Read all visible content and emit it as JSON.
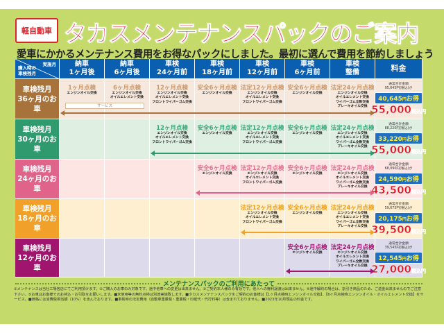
{
  "header": {
    "badge": "軽自動車",
    "title": "タカスメンテナンスパックのご案内",
    "subtitle": "愛車にかかるメンテナンス費用をお得なパックにしました。最初に選んで費用を節約しましょう"
  },
  "table": {
    "corner_top": "実施月",
    "corner_bottom": "購入時の\n車検残月",
    "columns": [
      [
        "納車",
        "1ヶ月後"
      ],
      [
        "納車",
        "6ヶ月後"
      ],
      [
        "車検",
        "24ヶ月前"
      ],
      [
        "車検",
        "18ヶ月前"
      ],
      [
        "車検",
        "12ヶ月前"
      ],
      [
        "車検",
        "6ヶ月前"
      ],
      [
        "車検",
        "整備"
      ]
    ],
    "price_header": "料金",
    "service_label": "サービス",
    "inspections": {
      "m1": {
        "title": "1ヶ月点検",
        "items": [
          "エンジンオイル交換"
        ]
      },
      "m6": {
        "title": "6ヶ月点検",
        "items": [
          "エンジンオイル交換",
          "オイルエレメント交換"
        ]
      },
      "m12": {
        "title": "12ヶ月点検",
        "items": [
          "エンジンオイル交換",
          "オイルエレメント交換",
          "フロントワイパーゴム交換"
        ]
      },
      "s6": {
        "title": "安全6ヶ月点検",
        "items": [
          "エンジンオイル交換"
        ]
      },
      "h12": {
        "title": "法定12ヶ月点検",
        "items": [
          "エンジンオイル交換",
          "オイルエレメント交換",
          "フロントワイパーゴム交換"
        ]
      },
      "h24": {
        "title": "法定24ヶ月点検",
        "items": [
          "エンジンオイル交換",
          "オイルエレメント交換",
          "ワイパーゴム全数交換",
          "ブレーキオイル交換"
        ]
      }
    },
    "price_labels": {
      "normal": "通常合計金額",
      "suffix": "円(税込)が",
      "save_suffix": "円",
      "save_word": "お得",
      "yen": "円",
      "tax": "税込"
    },
    "rows": [
      {
        "label": [
          "車検残月",
          "36ヶ月のお車"
        ],
        "color": "#a8733a",
        "bg": "#f6e8dc",
        "accent": "#c9986c",
        "start": 0,
        "normal": "95,645",
        "save": "40,645",
        "price": "55,000"
      },
      {
        "label": [
          "車検残月",
          "30ヶ月のお車"
        ],
        "color": "#2f9a6e",
        "bg": "#dff0e3",
        "accent": "#3aa57a",
        "start": 2,
        "normal": "88,220",
        "save": "33,220",
        "price": "55,000"
      },
      {
        "label": [
          "車検残月",
          "24ヶ月のお車"
        ],
        "color": "#e0638a",
        "bg": "#fde5e4",
        "accent": "#e2718f",
        "start": 3,
        "normal": "68,090",
        "save": "24,590",
        "price": "43,500"
      },
      {
        "label": [
          "車検残月",
          "18ヶ月のお車"
        ],
        "color": "#f1a12a",
        "bg": "#fdefcf",
        "accent": "#eea01e",
        "start": 4,
        "normal": "59,675",
        "save": "20,175",
        "price": "39,500"
      },
      {
        "label": [
          "車検残月",
          "12ヶ月のお車"
        ],
        "color": "#a0166e",
        "bg": "#dddbeb",
        "accent": "#a0166e",
        "start": 5,
        "normal": "39,545",
        "save": "12,545",
        "price": "27,000"
      }
    ]
  },
  "colors": {
    "page_bg": "#c4db6c",
    "header_blue": "#0b5fb0",
    "title_red": "#e3141f"
  },
  "footer": {
    "heading": "メンテナンスパックのご利用にあたって",
    "text": "①メンテナンスは当社工場各店にてご利用頂けます。②ご購入のお車のみ対象です。途中他車への変更は出来ません。③ご契約本人様のみ有効です。他人への権利譲渡は出来ません。④途中解約の場合は、割引き商品のため、ご返金出来ませんのでご注意下さい。⑤お車はお客様でのお持込・お引取をお願いします。■未使用等の無料点検は別途実施致します。■タカスメンテナンスパックをご契約のお客様は【1ヶ月点検時エンジンオイル交換】、【6ヶ月点検時エンジンオイル・オイルエレメント交換】をサービス。■価格には消費税相当額（10%）を含んでおります。■車検時の法定費用（自動車重量税・重量税・印紙代・代行料等）は含まれておりません。■2023年10月現在の料金です。"
  }
}
